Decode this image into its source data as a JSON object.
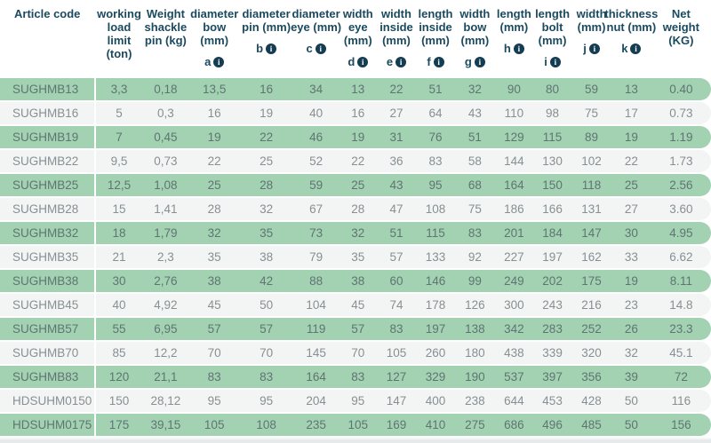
{
  "colors": {
    "green_row": "#a3d2b3",
    "alt_row": "#f3f5f5",
    "header_text": "#1b4a5f",
    "info_icon_bg": "#143c52",
    "data_text_green_row": "#5f7471",
    "data_text_alt_row": "#878f91"
  },
  "icons": {
    "info_glyph": "i"
  },
  "table": {
    "columns": [
      {
        "id": "article-code",
        "label": "Article code",
        "lines": [
          "Article code"
        ],
        "letter": ""
      },
      {
        "id": "working-load-limit",
        "label": "working load limit (ton)",
        "lines": [
          "working",
          "load",
          "limit",
          "(ton)"
        ],
        "letter": ""
      },
      {
        "id": "weight-shackle-pin",
        "label": "Weight shackle pin (kg)",
        "lines": [
          "Weight",
          "shackle",
          "pin (kg)"
        ],
        "letter": ""
      },
      {
        "id": "diameter-bow",
        "label": "diameter bow (mm)",
        "lines": [
          "diameter",
          "bow",
          "(mm)"
        ],
        "letter": "a"
      },
      {
        "id": "diameter-pin",
        "label": "diameter pin (mm)",
        "lines": [
          "diameter",
          "pin (mm)"
        ],
        "letter": "b"
      },
      {
        "id": "diameter-eye",
        "label": "diameter eye (mm)",
        "lines": [
          "diameter",
          "eye (mm)"
        ],
        "letter": "c"
      },
      {
        "id": "width-eye",
        "label": "width eye (mm)",
        "lines": [
          "width",
          "eye",
          "(mm)"
        ],
        "letter": "d"
      },
      {
        "id": "width-inside",
        "label": "width inside (mm)",
        "lines": [
          "width",
          "inside",
          "(mm)"
        ],
        "letter": "e"
      },
      {
        "id": "length-inside",
        "label": "length inside (mm)",
        "lines": [
          "length",
          "inside",
          "(mm)"
        ],
        "letter": "f"
      },
      {
        "id": "width-bow",
        "label": "width bow (mm)",
        "lines": [
          "width",
          "bow",
          "(mm)"
        ],
        "letter": "g"
      },
      {
        "id": "length",
        "label": "length (mm)",
        "lines": [
          "length",
          "(mm)"
        ],
        "letter": "h"
      },
      {
        "id": "length-bolt",
        "label": "length bolt (mm)",
        "lines": [
          "length",
          "bolt",
          "(mm)"
        ],
        "letter": "i"
      },
      {
        "id": "width",
        "label": "width (mm)",
        "lines": [
          "width",
          "(mm)"
        ],
        "letter": "j"
      },
      {
        "id": "thickness-nut",
        "label": "thickness nut (mm)",
        "lines": [
          "thickness",
          "nut (mm)"
        ],
        "letter": "k"
      },
      {
        "id": "net-weight",
        "label": "Net weight (KG)",
        "lines": [
          "Net",
          "weight",
          "(KG)"
        ],
        "letter": ""
      }
    ],
    "rows": [
      {
        "code": "SUGHMB13",
        "values": [
          "3,3",
          "0,18",
          "13,5",
          "16",
          "34",
          "13",
          "22",
          "51",
          "32",
          "90",
          "80",
          "59",
          "13",
          "0.40"
        ]
      },
      {
        "code": "SUGHMB16",
        "values": [
          "5",
          "0,3",
          "16",
          "19",
          "40",
          "16",
          "27",
          "64",
          "43",
          "110",
          "98",
          "75",
          "17",
          "0.73"
        ]
      },
      {
        "code": "SUGHMB19",
        "values": [
          "7",
          "0,45",
          "19",
          "22",
          "46",
          "19",
          "31",
          "76",
          "51",
          "129",
          "115",
          "89",
          "19",
          "1.19"
        ]
      },
      {
        "code": "SUGHMB22",
        "values": [
          "9,5",
          "0,73",
          "22",
          "25",
          "52",
          "22",
          "36",
          "83",
          "58",
          "144",
          "130",
          "102",
          "22",
          "1.73"
        ]
      },
      {
        "code": "SUGHMB25",
        "values": [
          "12,5",
          "1,08",
          "25",
          "28",
          "59",
          "25",
          "43",
          "95",
          "68",
          "164",
          "150",
          "118",
          "25",
          "2.56"
        ]
      },
      {
        "code": "SUGHMB28",
        "values": [
          "15",
          "1,41",
          "28",
          "32",
          "67",
          "28",
          "47",
          "108",
          "75",
          "186",
          "166",
          "131",
          "27",
          "3.60"
        ]
      },
      {
        "code": "SUGHMB32",
        "values": [
          "18",
          "1,79",
          "32",
          "35",
          "73",
          "32",
          "51",
          "115",
          "83",
          "201",
          "184",
          "147",
          "30",
          "4.95"
        ]
      },
      {
        "code": "SUGHMB35",
        "values": [
          "21",
          "2,3",
          "35",
          "38",
          "79",
          "35",
          "57",
          "133",
          "92",
          "227",
          "197",
          "162",
          "33",
          "6.62"
        ]
      },
      {
        "code": "SUGHMB38",
        "values": [
          "30",
          "2,76",
          "38",
          "42",
          "88",
          "38",
          "60",
          "146",
          "99",
          "249",
          "202",
          "175",
          "19",
          "8.11"
        ]
      },
      {
        "code": "SUGHMB45",
        "values": [
          "40",
          "4,92",
          "45",
          "50",
          "104",
          "45",
          "74",
          "178",
          "126",
          "300",
          "243",
          "216",
          "23",
          "14.8"
        ]
      },
      {
        "code": "SUGHMB57",
        "values": [
          "55",
          "6,95",
          "57",
          "57",
          "119",
          "57",
          "83",
          "197",
          "138",
          "342",
          "283",
          "252",
          "26",
          "23.3"
        ]
      },
      {
        "code": "SUGHMB70",
        "values": [
          "85",
          "12,2",
          "70",
          "70",
          "145",
          "70",
          "105",
          "260",
          "180",
          "438",
          "339",
          "320",
          "32",
          "45.1"
        ]
      },
      {
        "code": "SUGHMB83",
        "values": [
          "120",
          "21,1",
          "83",
          "83",
          "164",
          "83",
          "127",
          "329",
          "190",
          "537",
          "397",
          "356",
          "39",
          "72"
        ]
      },
      {
        "code": "HDSUHM0150",
        "values": [
          "150",
          "28,12",
          "95",
          "95",
          "204",
          "95",
          "147",
          "400",
          "238",
          "644",
          "453",
          "428",
          "50",
          "116"
        ]
      },
      {
        "code": "HDSUHM0175",
        "values": [
          "175",
          "39,15",
          "105",
          "108",
          "235",
          "105",
          "169",
          "410",
          "275",
          "686",
          "496",
          "485",
          "50",
          "156"
        ]
      }
    ]
  }
}
